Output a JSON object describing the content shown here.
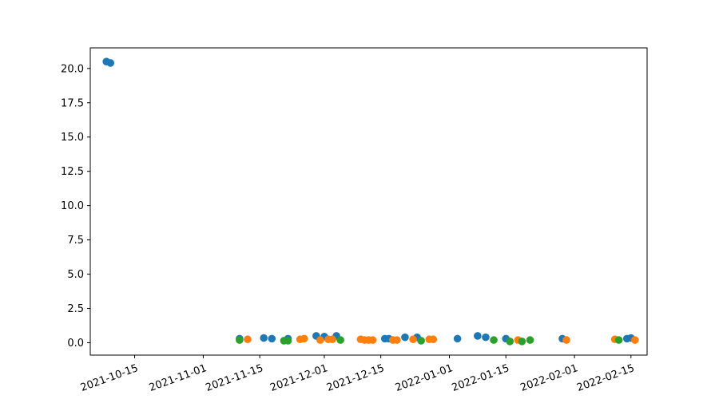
{
  "chart_data": {
    "type": "scatter",
    "title": "",
    "xlabel": "",
    "ylabel": "",
    "x_axis": {
      "type": "date",
      "range": [
        "2021-10-04",
        "2022-02-19"
      ],
      "ticks": [
        "2021-10-15",
        "2021-11-01",
        "2021-11-15",
        "2021-12-01",
        "2021-12-15",
        "2022-01-01",
        "2022-01-15",
        "2022-02-01",
        "2022-02-15"
      ],
      "tick_rotation_deg": 20
    },
    "y_axis": {
      "range": [
        -0.9,
        21.5
      ],
      "ticks": [
        0.0,
        2.5,
        5.0,
        7.5,
        10.0,
        12.5,
        15.0,
        17.5,
        20.0
      ],
      "tick_labels": [
        "0.0",
        "2.5",
        "5.0",
        "7.5",
        "10.0",
        "12.5",
        "15.0",
        "17.5",
        "20.0"
      ]
    },
    "grid": false,
    "legend": "none",
    "series": [
      {
        "color": "#1f77b4",
        "points": [
          {
            "x": "2021-10-08",
            "y": 20.5
          },
          {
            "x": "2021-10-09",
            "y": 20.4
          },
          {
            "x": "2021-11-10",
            "y": 0.3
          },
          {
            "x": "2021-11-16",
            "y": 0.35
          },
          {
            "x": "2021-11-18",
            "y": 0.3
          },
          {
            "x": "2021-11-22",
            "y": 0.3
          },
          {
            "x": "2021-11-29",
            "y": 0.5
          },
          {
            "x": "2021-12-01",
            "y": 0.45
          },
          {
            "x": "2021-12-04",
            "y": 0.5
          },
          {
            "x": "2021-12-16",
            "y": 0.3
          },
          {
            "x": "2021-12-17",
            "y": 0.3
          },
          {
            "x": "2021-12-21",
            "y": 0.4
          },
          {
            "x": "2021-12-24",
            "y": 0.4
          },
          {
            "x": "2022-01-03",
            "y": 0.3
          },
          {
            "x": "2022-01-08",
            "y": 0.5
          },
          {
            "x": "2022-01-10",
            "y": 0.4
          },
          {
            "x": "2022-01-15",
            "y": 0.3
          },
          {
            "x": "2022-01-29",
            "y": 0.3
          },
          {
            "x": "2022-02-14",
            "y": 0.3
          },
          {
            "x": "2022-02-15",
            "y": 0.35
          }
        ]
      },
      {
        "color": "#ff7f0e",
        "points": [
          {
            "x": "2021-11-12",
            "y": 0.25
          },
          {
            "x": "2021-11-25",
            "y": 0.25
          },
          {
            "x": "2021-11-26",
            "y": 0.3
          },
          {
            "x": "2021-11-30",
            "y": 0.2
          },
          {
            "x": "2021-12-02",
            "y": 0.25
          },
          {
            "x": "2021-12-03",
            "y": 0.25
          },
          {
            "x": "2021-12-10",
            "y": 0.25
          },
          {
            "x": "2021-12-11",
            "y": 0.2
          },
          {
            "x": "2021-12-12",
            "y": 0.2
          },
          {
            "x": "2021-12-13",
            "y": 0.2
          },
          {
            "x": "2021-12-18",
            "y": 0.2
          },
          {
            "x": "2021-12-19",
            "y": 0.2
          },
          {
            "x": "2021-12-23",
            "y": 0.25
          },
          {
            "x": "2021-12-27",
            "y": 0.25
          },
          {
            "x": "2021-12-28",
            "y": 0.25
          },
          {
            "x": "2022-01-18",
            "y": 0.2
          },
          {
            "x": "2022-01-30",
            "y": 0.2
          },
          {
            "x": "2022-02-11",
            "y": 0.25
          },
          {
            "x": "2022-02-16",
            "y": 0.2
          }
        ]
      },
      {
        "color": "#2ca02c",
        "points": [
          {
            "x": "2021-11-10",
            "y": 0.2
          },
          {
            "x": "2021-11-21",
            "y": 0.15
          },
          {
            "x": "2021-11-22",
            "y": 0.15
          },
          {
            "x": "2021-12-05",
            "y": 0.2
          },
          {
            "x": "2021-12-25",
            "y": 0.15
          },
          {
            "x": "2022-01-12",
            "y": 0.2
          },
          {
            "x": "2022-01-16",
            "y": 0.1
          },
          {
            "x": "2022-01-19",
            "y": 0.1
          },
          {
            "x": "2022-01-21",
            "y": 0.2
          },
          {
            "x": "2022-02-12",
            "y": 0.2
          }
        ]
      }
    ]
  }
}
